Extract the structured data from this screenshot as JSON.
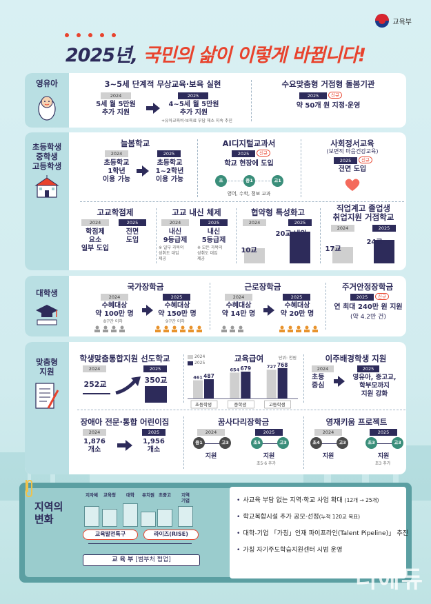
{
  "header": {
    "ministry": "교육부",
    "title_year": "2025년,",
    "title_rest": "국민의 삶이 이렇게 바뀝니다!"
  },
  "years": {
    "y2024": "2024",
    "y2025": "2025"
  },
  "new_badge": "신규",
  "infant": {
    "label": "영유아",
    "free": {
      "title": "3~5세 단계적 무상교육·보육 실현",
      "v2024": "5세 월 5만원\n추가 지원",
      "v2025": "4~5세 월 5만원\n추가 지원",
      "note": "+유아교육비·보육료 부담 해소 지속 추진"
    },
    "care": {
      "title": "수요맞춤형 거점형 돌봄기관",
      "value": "약 50개 원 지정·운영"
    }
  },
  "school": {
    "label": "초등학생\n중학생\n고등학생",
    "neulbom": {
      "title": "늘봄학교",
      "v2024": "초등학교\n1학년\n이용 가능",
      "v2025": "초등학교\n1~2학년\n이용 가능"
    },
    "ai": {
      "title": "AI디지털교과서",
      "value": "학교 현장에 도입",
      "c1": "초3·4",
      "c2": "중1",
      "c3": "고1",
      "subjects": "영어, 수학, 정보 교과"
    },
    "emotion": {
      "title": "사회정서교육",
      "subtitle": "(보편적 마음건강교육)",
      "value": "전면 도입"
    },
    "credit": {
      "title": "고교학점제",
      "v2024": "학점제\n요소\n일부 도입",
      "v2025": "전면\n도입"
    },
    "grading": {
      "title": "고교 내신 체제",
      "v2024": "내신\n9등급제",
      "v2025": "내신\n5등급제",
      "n2024": "※ 일부 과목의\n성취도 대입\n제공",
      "n2025": "※ 모든 과목의\n성취도 대입\n제공"
    },
    "agreement": {
      "title": "협약형 특성화고",
      "v2024": "10교",
      "v2025": "20교 내외",
      "ratio2024": 0.45,
      "ratio2025": 0.95
    },
    "vocational": {
      "title": "직업계고 졸업생\n취업지원 거점학교",
      "v2024": "17교",
      "v2025": "24교",
      "ratio2024": 0.6,
      "ratio2025": 0.85
    }
  },
  "college": {
    "label": "대학생",
    "national": {
      "title": "국가장학금",
      "v2024": "수혜대상\n약 100만 명",
      "n2024": "8구간 이하",
      "v2025": "수혜대상\n약 150만 명",
      "n2025": "9구간 이하"
    },
    "work": {
      "title": "근로장학금",
      "v2024": "수혜대상\n약 14만 명",
      "v2025": "수혜대상\n약 20만 명"
    },
    "housing": {
      "title": "주거안정장학금",
      "value": "연 최대 240만 원 지원",
      "sub": "(약 4.2만 건)"
    }
  },
  "custom": {
    "label": "맞춤형\n지원",
    "leading": {
      "title": "학생맞춤통합지원 선도학교",
      "v2024": "252교",
      "v2025": "350교"
    },
    "edu_pay": {
      "title": "교육급여",
      "unit": "단위: 천원",
      "legend_2024": "2024",
      "legend_2025": "2025",
      "categories": [
        "초등학생",
        "중학생",
        "고등학생"
      ],
      "values_2024": [
        461,
        654,
        727
      ],
      "values_2025": [
        487,
        679,
        768
      ]
    },
    "migrant": {
      "title": "이주배경학생 지원",
      "v2024": "초등\n중심",
      "v2025": "영유아, 중고교,\n학부모까지\n지원 강화"
    },
    "disabled": {
      "title": "장애아 전문·통합 어린이집",
      "v2024": "1,876\n개소",
      "v2025": "1,956\n개소"
    },
    "dream": {
      "title": "꿈사다리장학금",
      "a1": "중1",
      "a2": "고3",
      "b1": "초5",
      "b2": "고3",
      "l2024": "지원",
      "l2025": "지원",
      "n2025": "초5·6 추가"
    },
    "gifted": {
      "title": "영재키움 프로젝트",
      "a1": "초4",
      "a2": "고3",
      "b1": "초3",
      "b2": "고3",
      "l2024": "지원",
      "l2025": "지원",
      "n2025": "초3 추가"
    }
  },
  "region": {
    "title": "지역의\n변화",
    "buildings": [
      "지자체",
      "교육청",
      "대학",
      "유치원",
      "초중고",
      "지역\n기업"
    ],
    "pill1": "교육발전특구",
    "pill2": "라이즈(RISE)",
    "moe": "교 육 부",
    "moe_sub": "[범부처 협업]",
    "bullets": [
      {
        "text": "사교육 부담 없는 지역·학교 사업 확대",
        "small": "(12개 → 25개)"
      },
      {
        "text": "학교복합시설 추가 공모·선정",
        "small": "(누적 120교 목표)"
      },
      {
        "text": "대학-기업 「가칭」인재 파이프라인(Talent Pipeline)」 추진",
        "small": ""
      },
      {
        "text": "가칭 자기주도학습지원센터 시범 운영",
        "small": ""
      }
    ]
  },
  "watermark": "더에듀"
}
